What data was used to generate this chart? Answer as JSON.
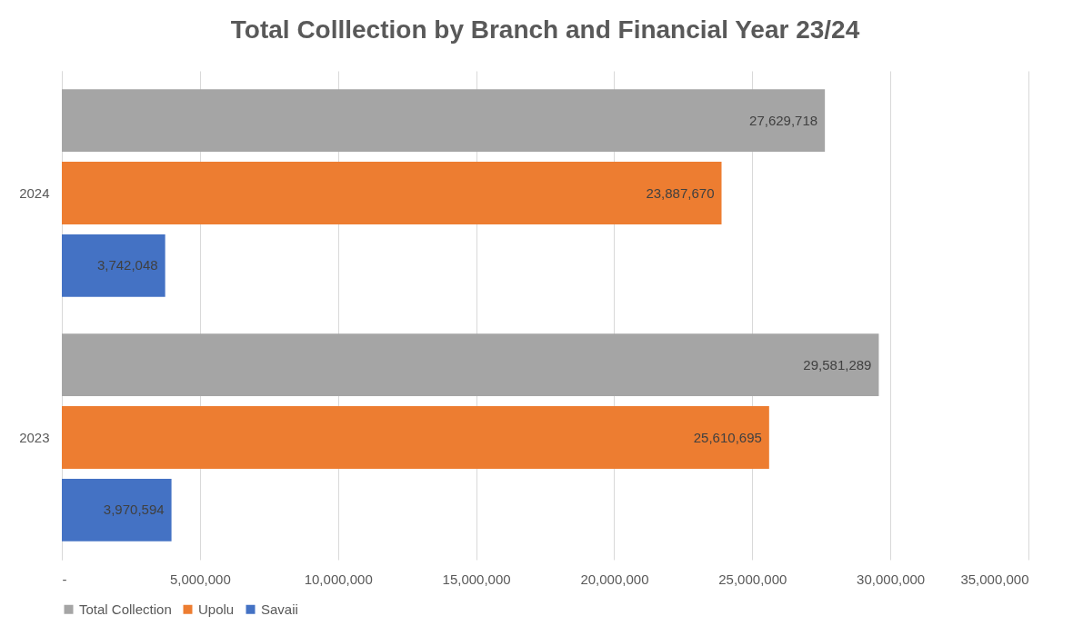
{
  "chart_data": {
    "type": "bar",
    "orientation": "horizontal",
    "title": "Total Colllection by Branch and Financial Year 23/24",
    "categories": [
      "2024",
      "2023"
    ],
    "series": [
      {
        "name": "Total Collection",
        "color": "#a5a5a5",
        "values": [
          27629718,
          29581289
        ],
        "value_labels": [
          "27,629,718",
          "29,581,289"
        ]
      },
      {
        "name": "Upolu",
        "color": "#ed7d31",
        "values": [
          23887670,
          25610695
        ],
        "value_labels": [
          "23,887,670",
          "25,610,695"
        ]
      },
      {
        "name": "Savaii",
        "color": "#4472c4",
        "values": [
          3742048,
          3970594
        ],
        "value_labels": [
          "3,742,048",
          "3,970,594"
        ]
      }
    ],
    "xlim": [
      0,
      35000000
    ],
    "xticks": [
      {
        "value": 0,
        "label": "-"
      },
      {
        "value": 5000000,
        "label": "5,000,000"
      },
      {
        "value": 10000000,
        "label": "10,000,000"
      },
      {
        "value": 15000000,
        "label": "15,000,000"
      },
      {
        "value": 20000000,
        "label": "20,000,000"
      },
      {
        "value": 25000000,
        "label": "25,000,000"
      },
      {
        "value": 30000000,
        "label": "30,000,000"
      },
      {
        "value": 35000000,
        "label": "35,000,000"
      }
    ],
    "grid": "x",
    "legend": "bottom"
  }
}
